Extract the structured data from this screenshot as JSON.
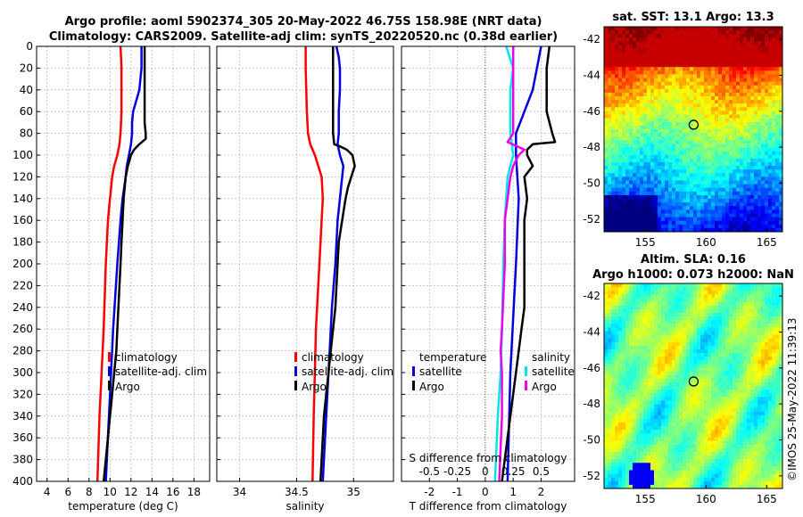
{
  "chart_data": [
    {
      "type": "line",
      "title_line1": "Argo profile: aoml 5902374_305 20-May-2022 46.75S 158.98E (NRT data)",
      "title_line2": "Climatology: CARS2009. Satellite-adj clim: synTS_20220520.nc (0.38d earlier)",
      "xlabel": "temperature (deg C)",
      "ylabel": "",
      "xlim": [
        3,
        19.5
      ],
      "ylim": [
        400,
        0
      ],
      "xticks": [
        4,
        6,
        8,
        10,
        12,
        14,
        16,
        18
      ],
      "yticks": [
        0,
        20,
        40,
        60,
        80,
        100,
        120,
        140,
        160,
        180,
        200,
        220,
        240,
        260,
        280,
        300,
        320,
        340,
        360,
        380,
        400
      ],
      "legend": [
        "climatology",
        "satellite-adj. clim",
        "Argo"
      ],
      "legend_position": "lower-right",
      "series": [
        {
          "name": "climatology",
          "color": "#ff0000",
          "depth": [
            0,
            20,
            40,
            60,
            80,
            90,
            100,
            110,
            120,
            140,
            160,
            200,
            260,
            300,
            340,
            400
          ],
          "values": [
            11.0,
            11.1,
            11.1,
            11.1,
            11.0,
            10.9,
            10.7,
            10.4,
            10.2,
            10.0,
            9.8,
            9.6,
            9.4,
            9.2,
            9.0,
            8.8
          ]
        },
        {
          "name": "satellite-adj. clim",
          "color": "#0000dd",
          "depth": [
            0,
            20,
            30,
            40,
            50,
            60,
            70,
            80,
            90,
            100,
            110,
            120,
            140,
            160,
            200,
            260,
            300,
            340,
            400
          ],
          "values": [
            13.0,
            13.0,
            12.9,
            12.8,
            12.5,
            12.2,
            12.1,
            12.1,
            12.0,
            11.8,
            11.6,
            11.5,
            11.2,
            11.0,
            10.7,
            10.3,
            10.1,
            9.9,
            9.6
          ]
        },
        {
          "name": "Argo",
          "color": "#000000",
          "depth": [
            0,
            20,
            40,
            60,
            70,
            80,
            85,
            90,
            95,
            100,
            110,
            120,
            140,
            160,
            180,
            200,
            240,
            260,
            280,
            300,
            320,
            340,
            360,
            380,
            400
          ],
          "values": [
            13.3,
            13.3,
            13.3,
            13.3,
            13.3,
            13.4,
            13.4,
            12.8,
            12.3,
            12.0,
            11.7,
            11.5,
            11.3,
            11.2,
            11.1,
            11.0,
            10.8,
            10.7,
            10.6,
            10.4,
            10.2,
            10.0,
            9.8,
            9.6,
            9.4
          ]
        }
      ]
    },
    {
      "type": "line",
      "xlabel": "salinity",
      "xlim": [
        33.8,
        35.35
      ],
      "ylim": [
        400,
        0
      ],
      "xticks": [
        34,
        34.5,
        35
      ],
      "legend": [
        "climatology",
        "satellite-adj. clim",
        "Argo"
      ],
      "legend_position": "lower-right",
      "series": [
        {
          "name": "climatology",
          "color": "#ff0000",
          "depth": [
            0,
            20,
            60,
            80,
            90,
            100,
            120,
            140,
            160,
            200,
            260,
            300,
            340,
            400
          ],
          "values": [
            34.58,
            34.58,
            34.59,
            34.6,
            34.62,
            34.66,
            34.72,
            34.73,
            34.72,
            34.7,
            34.67,
            34.66,
            34.65,
            34.64
          ]
        },
        {
          "name": "satellite-adj. clim",
          "color": "#0000dd",
          "depth": [
            0,
            10,
            20,
            40,
            60,
            80,
            90,
            100,
            110,
            120,
            140,
            160,
            200,
            240,
            280,
            300,
            340,
            400
          ],
          "values": [
            34.85,
            34.87,
            34.88,
            34.88,
            34.87,
            34.87,
            34.86,
            34.88,
            34.91,
            34.9,
            34.88,
            34.86,
            34.84,
            34.81,
            34.79,
            34.78,
            34.76,
            34.73
          ]
        },
        {
          "name": "Argo",
          "color": "#000000",
          "depth": [
            0,
            20,
            40,
            60,
            80,
            90,
            92,
            95,
            100,
            110,
            120,
            130,
            140,
            160,
            180,
            200,
            240,
            280,
            300,
            320,
            340,
            360,
            380,
            400
          ],
          "values": [
            34.82,
            34.82,
            34.82,
            34.82,
            34.82,
            34.83,
            34.88,
            34.94,
            34.99,
            35.01,
            34.98,
            34.95,
            34.93,
            34.9,
            34.87,
            34.86,
            34.84,
            34.8,
            34.78,
            34.76,
            34.74,
            34.73,
            34.72,
            34.71
          ]
        }
      ]
    },
    {
      "type": "line",
      "xlabel": "T difference from climatology",
      "top_axis_label": "S difference from climatology",
      "xlim": [
        -3.0,
        3.2
      ],
      "ylim": [
        400,
        0
      ],
      "xticks": [
        -2,
        -1,
        0,
        1,
        2
      ],
      "top_ticks": [
        "-0.5",
        "-0.25",
        "0",
        "0.25",
        "0.5"
      ],
      "legend_left": [
        "temperature",
        "satellite",
        "Argo"
      ],
      "legend_right": [
        "salinity",
        "satellite",
        "Argo"
      ],
      "series": [
        {
          "name": "temperature satellite",
          "color": "#0000dd",
          "depth": [
            0,
            40,
            80,
            100,
            140,
            200,
            300,
            400
          ],
          "values": [
            2.0,
            1.7,
            1.1,
            1.1,
            1.2,
            1.1,
            0.9,
            0.8
          ]
        },
        {
          "name": "temperature Argo",
          "color": "#000000",
          "depth": [
            0,
            20,
            40,
            60,
            80,
            88,
            90,
            95,
            100,
            110,
            120,
            140,
            160,
            200,
            240,
            260,
            280,
            300,
            340,
            400
          ],
          "values": [
            2.3,
            2.2,
            2.2,
            2.2,
            2.4,
            2.5,
            1.7,
            1.5,
            1.5,
            1.7,
            1.4,
            1.5,
            1.4,
            1.4,
            1.4,
            1.3,
            1.2,
            1.1,
            0.9,
            0.6
          ]
        },
        {
          "name": "salinity satellite",
          "color": "#00e5e5",
          "depth": [
            0,
            20,
            40,
            60,
            80,
            100,
            110,
            120,
            140,
            160,
            200,
            260,
            300,
            340,
            400
          ],
          "values": [
            0.75,
            1.0,
            0.9,
            0.9,
            0.9,
            1.0,
            0.9,
            0.8,
            0.75,
            0.7,
            0.65,
            0.6,
            0.55,
            0.45,
            0.35
          ]
        },
        {
          "name": "salinity Argo",
          "color": "#ee00ee",
          "depth": [
            0,
            20,
            40,
            60,
            80,
            88,
            95,
            100,
            110,
            120,
            140,
            160,
            200,
            260,
            280,
            300,
            340,
            400
          ],
          "values": [
            1.0,
            1.0,
            1.0,
            1.0,
            1.0,
            0.8,
            1.4,
            1.2,
            1.0,
            0.9,
            0.8,
            0.7,
            0.7,
            0.6,
            0.55,
            0.6,
            0.6,
            0.5
          ]
        }
      ]
    }
  ],
  "maps": {
    "sst": {
      "title": "sat. SST: 13.1 Argo: 13.3",
      "xticks": [
        "155",
        "160",
        "165"
      ],
      "yticks": [
        "-42",
        "-44",
        "-46",
        "-48",
        "-50",
        "-52"
      ],
      "lon_range": [
        151.6,
        166.3
      ],
      "lat_range": [
        -52.7,
        -41.3
      ],
      "argo_lon": 158.98,
      "argo_lat": -46.75
    },
    "sla": {
      "title_line1": "Altim. SLA: 0.16",
      "title_line2": "Argo h1000: 0.073 h2000: NaN",
      "xticks": [
        "155",
        "160",
        "165"
      ],
      "yticks": [
        "-42",
        "-44",
        "-46",
        "-48",
        "-50",
        "-52"
      ],
      "lon_range": [
        151.6,
        166.3
      ],
      "lat_range": [
        -52.7,
        -41.3
      ],
      "argo_lon": 158.98,
      "argo_lat": -46.75
    }
  },
  "watermark": "©IMOS 25-May-2022 11:39:13"
}
